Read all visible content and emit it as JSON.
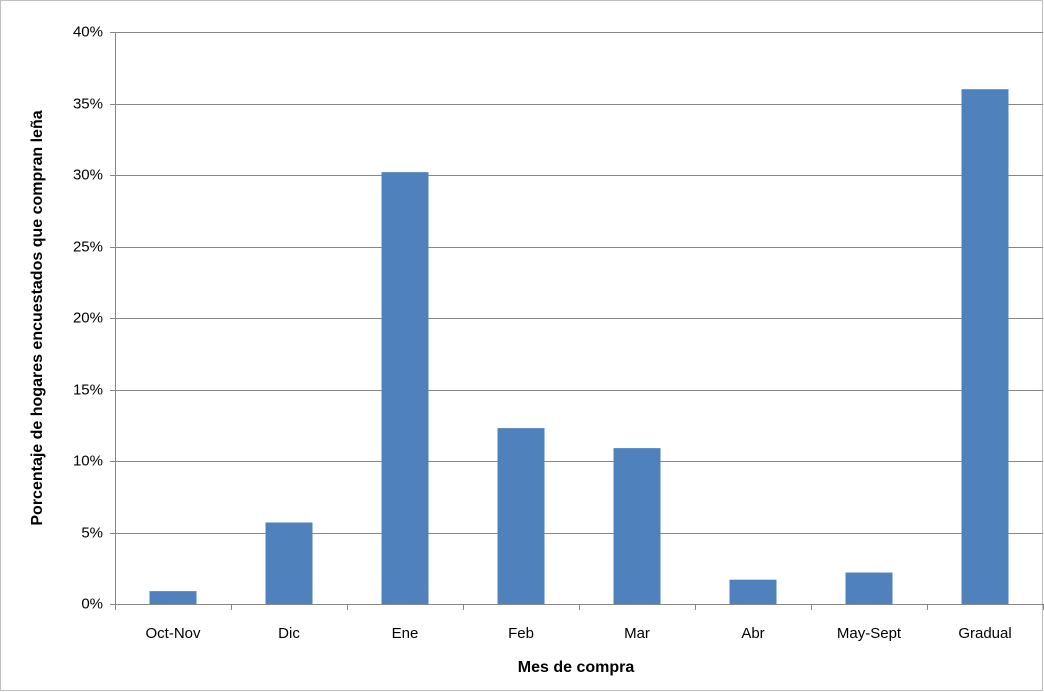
{
  "chart_data": {
    "type": "bar",
    "x_label": "Mes de compra",
    "y_label": "Porcentaje de hogares encuestados que compran leña",
    "categories": [
      "Oct-Nov",
      "Dic",
      "Ene",
      "Feb",
      "Mar",
      "Abr",
      "May-Sept",
      "Gradual"
    ],
    "values": [
      0.9,
      5.7,
      30.2,
      12.3,
      10.9,
      1.7,
      2.2,
      36.0
    ],
    "color": "#4f81bd",
    "ylim": [
      0,
      40
    ],
    "yticks": [
      {
        "value": 0,
        "label": "0%"
      },
      {
        "value": 5,
        "label": "5%"
      },
      {
        "value": 10,
        "label": "10%"
      },
      {
        "value": 15,
        "label": "15%"
      },
      {
        "value": 20,
        "label": "20%"
      },
      {
        "value": 25,
        "label": "25%"
      },
      {
        "value": 30,
        "label": "30%"
      },
      {
        "value": 35,
        "label": "35%"
      },
      {
        "value": 40,
        "label": "40%"
      }
    ],
    "grid": true
  }
}
